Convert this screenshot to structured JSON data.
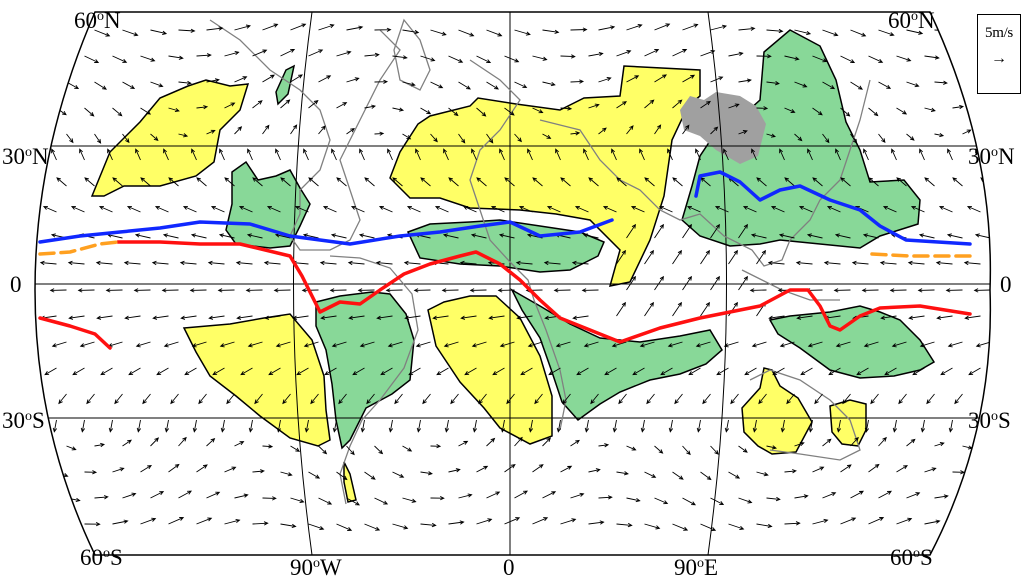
{
  "map": {
    "lat_labels": [
      {
        "deg": "60",
        "hemi": "N"
      },
      {
        "deg": "30",
        "hemi": "N"
      },
      {
        "deg": "0",
        "hemi": ""
      },
      {
        "deg": "30",
        "hemi": "S"
      },
      {
        "deg": "60",
        "hemi": "S"
      }
    ],
    "lon_labels": [
      {
        "deg": "90",
        "hemi": "W"
      },
      {
        "deg": "0",
        "hemi": ""
      },
      {
        "deg": "90",
        "hemi": "E"
      }
    ],
    "scale": {
      "label": "5m/s",
      "arrow": "→"
    },
    "colors": {
      "yellow_region": "#ffff66",
      "green_region": "#88d898",
      "tibet": "#a0a0a0",
      "blue_line": "#1028ff",
      "red_line": "#ff1010",
      "orange_dash": "#ffa020",
      "coast": "#808080",
      "vector": "#000000"
    }
  }
}
